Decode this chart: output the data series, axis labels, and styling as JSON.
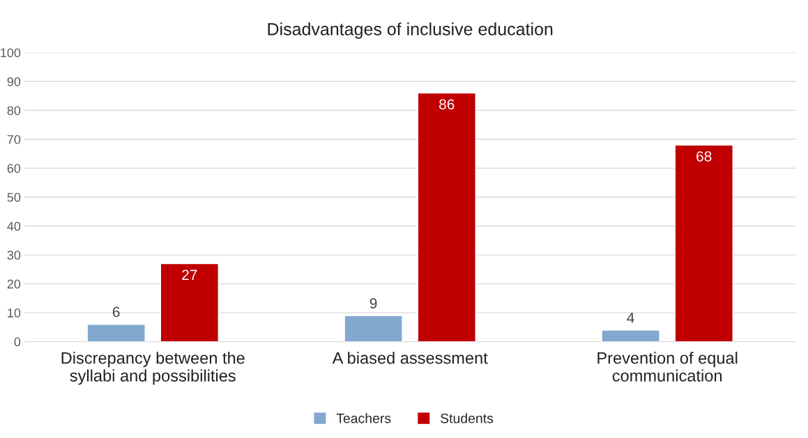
{
  "chart_data": {
    "type": "bar",
    "title": "Disadvantages of inclusive education",
    "categories": [
      "Discrepancy between the\nsyllabi and possibilities",
      "A biased assessment",
      "Prevention of equal\ncommunication"
    ],
    "series": [
      {
        "name": "Teachers",
        "color": "#82a8d0",
        "values": [
          6,
          9,
          4
        ]
      },
      {
        "name": "Students",
        "color": "#c00000",
        "values": [
          27,
          86,
          68
        ]
      }
    ],
    "ylim": [
      0,
      100
    ],
    "yticks": [
      0,
      10,
      20,
      30,
      40,
      50,
      60,
      70,
      80,
      90,
      100
    ],
    "grid": "y",
    "legend": "bottom",
    "data_labels": true
  }
}
